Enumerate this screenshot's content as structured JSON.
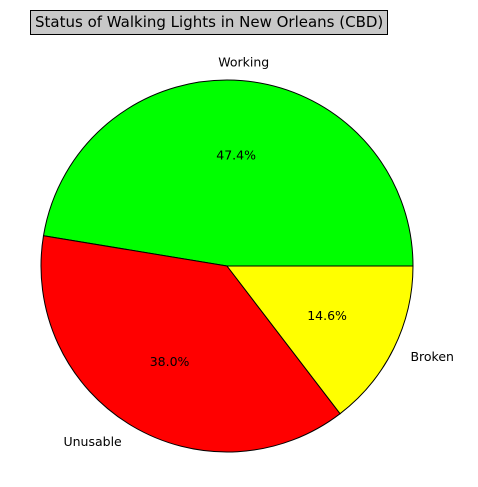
{
  "chart_data": {
    "type": "pie",
    "title": "Status of Walking Lights in New Orleans (CBD)",
    "categories": [
      "Working",
      "Unusable",
      "Broken"
    ],
    "values": [
      47.4,
      38.0,
      14.6
    ],
    "value_labels": [
      "47.4%",
      "38.0%",
      "14.6%"
    ],
    "colors": [
      "#00ff00",
      "#ff0000",
      "#ffff00"
    ],
    "start_angle_deg": 0,
    "direction": "counterclockwise",
    "edge_color": "#000000",
    "legend": "none"
  }
}
